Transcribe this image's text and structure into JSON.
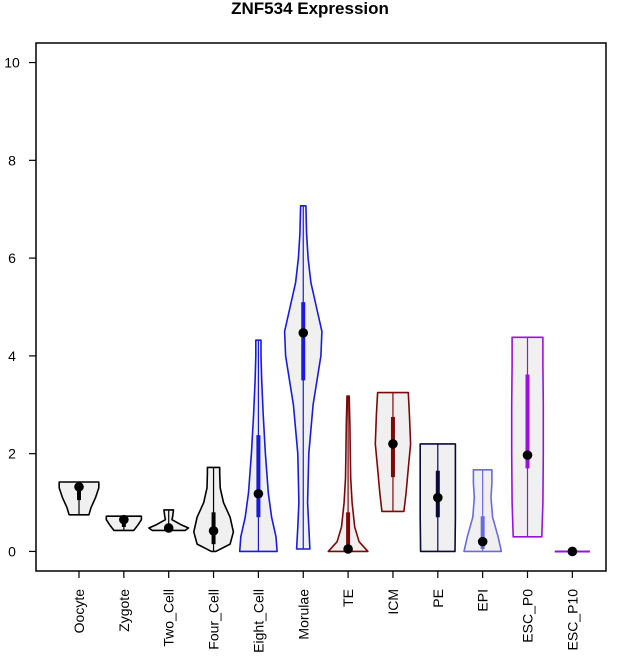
{
  "chart_data": {
    "type": "violin",
    "title": "ZNF534 Expression",
    "xlabel": "",
    "ylabel": "",
    "ylim": [
      -0.4,
      10.4
    ],
    "yticks": [
      0,
      2,
      4,
      6,
      8,
      10
    ],
    "grid": false,
    "legend": "none",
    "categories": [
      "Oocyte",
      "Zygote",
      "Two_Cell",
      "Four_Cell",
      "Eight_Cell",
      "Morulae",
      "TE",
      "ICM",
      "PE",
      "EPI",
      "ESC_P0",
      "ESC_P10"
    ],
    "series": [
      {
        "category": "Oocyte",
        "color": "#000000",
        "min": 0.75,
        "q1": 1.05,
        "median": 1.32,
        "q3": 1.42,
        "max": 1.42,
        "profile": [
          [
            0.75,
            0.45
          ],
          [
            0.9,
            0.55
          ],
          [
            1.1,
            0.75
          ],
          [
            1.3,
            0.9
          ],
          [
            1.42,
            0.9
          ]
        ]
      },
      {
        "category": "Zygote",
        "color": "#000000",
        "min": 0.43,
        "q1": 0.5,
        "median": 0.65,
        "q3": 0.72,
        "max": 0.72,
        "profile": [
          [
            0.43,
            0.45
          ],
          [
            0.55,
            0.65
          ],
          [
            0.65,
            0.8
          ],
          [
            0.72,
            0.8
          ]
        ]
      },
      {
        "category": "Two_Cell",
        "color": "#000000",
        "min": 0.43,
        "q1": 0.45,
        "median": 0.48,
        "q3": 0.55,
        "max": 0.85,
        "profile": [
          [
            0.43,
            0.75
          ],
          [
            0.48,
            0.9
          ],
          [
            0.55,
            0.55
          ],
          [
            0.65,
            0.15
          ],
          [
            0.72,
            0.18
          ],
          [
            0.85,
            0.22
          ]
        ]
      },
      {
        "category": "Four_Cell",
        "color": "#000000",
        "min": 0.0,
        "q1": 0.15,
        "median": 0.42,
        "q3": 0.8,
        "max": 1.72,
        "profile": [
          [
            0.0,
            0.1
          ],
          [
            0.15,
            0.75
          ],
          [
            0.4,
            0.9
          ],
          [
            0.7,
            0.75
          ],
          [
            1.0,
            0.45
          ],
          [
            1.3,
            0.3
          ],
          [
            1.6,
            0.28
          ],
          [
            1.72,
            0.28
          ]
        ]
      },
      {
        "category": "Eight_Cell",
        "color": "#1a1adc",
        "min": 0.0,
        "q1": 0.7,
        "median": 1.18,
        "q3": 2.38,
        "max": 4.32,
        "profile": [
          [
            0.0,
            0.85
          ],
          [
            0.3,
            0.8
          ],
          [
            0.7,
            0.6
          ],
          [
            1.2,
            0.45
          ],
          [
            2.0,
            0.32
          ],
          [
            2.8,
            0.22
          ],
          [
            3.5,
            0.15
          ],
          [
            4.0,
            0.12
          ],
          [
            4.32,
            0.12
          ]
        ]
      },
      {
        "category": "Morulae",
        "color": "#1a1adc",
        "min": 0.05,
        "q1": 3.5,
        "median": 4.47,
        "q3": 5.1,
        "max": 7.07,
        "profile": [
          [
            0.05,
            0.3
          ],
          [
            0.5,
            0.25
          ],
          [
            1.0,
            0.2
          ],
          [
            2.0,
            0.25
          ],
          [
            3.0,
            0.45
          ],
          [
            4.0,
            0.8
          ],
          [
            4.5,
            0.85
          ],
          [
            5.0,
            0.6
          ],
          [
            5.5,
            0.35
          ],
          [
            6.0,
            0.22
          ],
          [
            6.5,
            0.15
          ],
          [
            7.07,
            0.12
          ]
        ]
      },
      {
        "category": "TE",
        "color": "#7a0a0a",
        "min": 0.0,
        "q1": 0.05,
        "median": 0.05,
        "q3": 0.8,
        "max": 3.18,
        "profile": [
          [
            0.0,
            0.9
          ],
          [
            0.2,
            0.5
          ],
          [
            0.5,
            0.3
          ],
          [
            1.0,
            0.18
          ],
          [
            1.5,
            0.12
          ],
          [
            2.0,
            0.1
          ],
          [
            2.6,
            0.08
          ],
          [
            3.18,
            0.05
          ]
        ]
      },
      {
        "category": "ICM",
        "color": "#7a0a0a",
        "min": 0.82,
        "q1": 1.52,
        "median": 2.2,
        "q3": 2.75,
        "max": 3.25,
        "profile": [
          [
            0.82,
            0.5
          ],
          [
            1.2,
            0.6
          ],
          [
            1.7,
            0.7
          ],
          [
            2.2,
            0.8
          ],
          [
            2.8,
            0.75
          ],
          [
            3.25,
            0.7
          ]
        ]
      },
      {
        "category": "PE",
        "color": "#0a0a3a",
        "min": 0.0,
        "q1": 0.7,
        "median": 1.1,
        "q3": 1.65,
        "max": 2.2,
        "profile": [
          [
            0.0,
            0.78
          ],
          [
            0.7,
            0.8
          ],
          [
            1.2,
            0.8
          ],
          [
            1.8,
            0.8
          ],
          [
            2.2,
            0.8
          ]
        ]
      },
      {
        "category": "EPI",
        "color": "#6a6add",
        "min": 0.0,
        "q1": 0.05,
        "median": 0.2,
        "q3": 0.72,
        "max": 1.67,
        "profile": [
          [
            0.0,
            0.85
          ],
          [
            0.3,
            0.7
          ],
          [
            0.7,
            0.45
          ],
          [
            1.1,
            0.38
          ],
          [
            1.4,
            0.42
          ],
          [
            1.67,
            0.42
          ]
        ]
      },
      {
        "category": "ESC_P0",
        "color": "#9a10dc",
        "min": 0.3,
        "q1": 1.7,
        "median": 1.97,
        "q3": 3.62,
        "max": 4.38,
        "profile": [
          [
            0.3,
            0.65
          ],
          [
            1.0,
            0.7
          ],
          [
            2.0,
            0.72
          ],
          [
            3.0,
            0.72
          ],
          [
            3.8,
            0.7
          ],
          [
            4.38,
            0.7
          ]
        ]
      },
      {
        "category": "ESC_P10",
        "color": "#9a10dc",
        "min": 0.0,
        "q1": 0.0,
        "median": 0.0,
        "q3": 0.0,
        "max": 0.0,
        "profile": [
          [
            0.0,
            0.8
          ]
        ]
      }
    ]
  }
}
